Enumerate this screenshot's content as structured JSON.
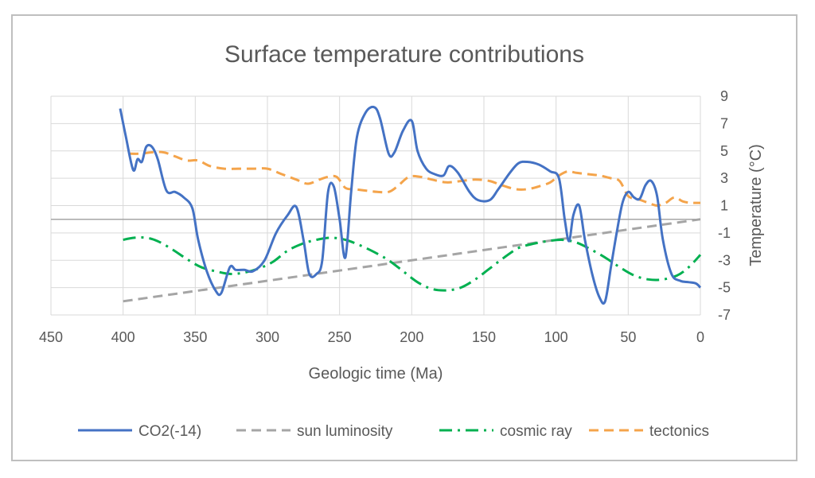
{
  "chart_data": {
    "type": "line",
    "title": "Surface temperature contributions",
    "xlabel": "Geologic time (Ma)",
    "ylabel": "Temperature (°C)",
    "x_reversed": true,
    "xlim": [
      0,
      450
    ],
    "ylim": [
      -7,
      9
    ],
    "x_ticks": [
      450,
      400,
      350,
      300,
      250,
      200,
      150,
      100,
      50,
      0
    ],
    "y_ticks": [
      9,
      7,
      5,
      3,
      1,
      -1,
      -3,
      -5,
      -7
    ],
    "y_axis_position": "right",
    "grid": true,
    "legend_position": "bottom",
    "series": [
      {
        "name": "CO2(-14)",
        "color": "#4472c4",
        "style": "solid",
        "points": [
          [
            402,
            8.1
          ],
          [
            398,
            6.0
          ],
          [
            393,
            3.6
          ],
          [
            390,
            4.4
          ],
          [
            387,
            4.2
          ],
          [
            384,
            5.3
          ],
          [
            380,
            5.3
          ],
          [
            376,
            4.4
          ],
          [
            370,
            2.1
          ],
          [
            364,
            2.0
          ],
          [
            358,
            1.6
          ],
          [
            352,
            0.8
          ],
          [
            348,
            -1.5
          ],
          [
            342,
            -3.8
          ],
          [
            336,
            -5.2
          ],
          [
            332,
            -5.4
          ],
          [
            326,
            -3.5
          ],
          [
            322,
            -3.7
          ],
          [
            316,
            -3.7
          ],
          [
            310,
            -3.8
          ],
          [
            302,
            -3.0
          ],
          [
            294,
            -1.0
          ],
          [
            286,
            0.3
          ],
          [
            280,
            0.9
          ],
          [
            275,
            -1.5
          ],
          [
            271,
            -4.0
          ],
          [
            266,
            -4.0
          ],
          [
            262,
            -3.0
          ],
          [
            258,
            2.0
          ],
          [
            254,
            2.4
          ],
          [
            250,
            0.0
          ],
          [
            246,
            -2.8
          ],
          [
            242,
            2.0
          ],
          [
            238,
            6.0
          ],
          [
            232,
            7.8
          ],
          [
            226,
            8.2
          ],
          [
            222,
            7.4
          ],
          [
            216,
            4.8
          ],
          [
            212,
            4.9
          ],
          [
            206,
            6.5
          ],
          [
            200,
            7.2
          ],
          [
            196,
            5.0
          ],
          [
            190,
            3.7
          ],
          [
            184,
            3.3
          ],
          [
            178,
            3.2
          ],
          [
            174,
            3.9
          ],
          [
            168,
            3.4
          ],
          [
            160,
            2.0
          ],
          [
            154,
            1.4
          ],
          [
            146,
            1.4
          ],
          [
            140,
            2.2
          ],
          [
            132,
            3.4
          ],
          [
            126,
            4.1
          ],
          [
            120,
            4.2
          ],
          [
            112,
            4.0
          ],
          [
            104,
            3.5
          ],
          [
            98,
            3.0
          ],
          [
            94,
            0.0
          ],
          [
            91,
            -1.6
          ],
          [
            88,
            0.3
          ],
          [
            84,
            1.0
          ],
          [
            80,
            -1.5
          ],
          [
            75,
            -4.0
          ],
          [
            70,
            -5.7
          ],
          [
            66,
            -6.0
          ],
          [
            62,
            -3.5
          ],
          [
            58,
            -1.0
          ],
          [
            54,
            1.2
          ],
          [
            50,
            2.0
          ],
          [
            46,
            1.6
          ],
          [
            42,
            1.5
          ],
          [
            38,
            2.5
          ],
          [
            34,
            2.8
          ],
          [
            30,
            1.7
          ],
          [
            26,
            -1.5
          ],
          [
            20,
            -4.0
          ],
          [
            14,
            -4.5
          ],
          [
            8,
            -4.6
          ],
          [
            3,
            -4.7
          ],
          [
            0,
            -5.0
          ]
        ]
      },
      {
        "name": "sun luminosity",
        "color": "#a5a5a5",
        "style": "dashed",
        "points": [
          [
            400,
            -6.0
          ],
          [
            0,
            0.0
          ]
        ]
      },
      {
        "name": "cosmic ray",
        "color": "#00b050",
        "style": "dashdot",
        "points": [
          [
            400,
            -1.5
          ],
          [
            392,
            -1.35
          ],
          [
            384,
            -1.35
          ],
          [
            376,
            -1.6
          ],
          [
            366,
            -2.2
          ],
          [
            356,
            -2.9
          ],
          [
            346,
            -3.5
          ],
          [
            336,
            -3.8
          ],
          [
            326,
            -4.0
          ],
          [
            316,
            -3.9
          ],
          [
            306,
            -3.6
          ],
          [
            296,
            -3.1
          ],
          [
            286,
            -2.3
          ],
          [
            276,
            -1.8
          ],
          [
            266,
            -1.5
          ],
          [
            256,
            -1.35
          ],
          [
            246,
            -1.5
          ],
          [
            236,
            -1.9
          ],
          [
            226,
            -2.4
          ],
          [
            216,
            -3.0
          ],
          [
            206,
            -3.8
          ],
          [
            196,
            -4.6
          ],
          [
            186,
            -5.1
          ],
          [
            176,
            -5.2
          ],
          [
            166,
            -5.0
          ],
          [
            156,
            -4.4
          ],
          [
            146,
            -3.6
          ],
          [
            136,
            -2.8
          ],
          [
            126,
            -2.1
          ],
          [
            116,
            -1.8
          ],
          [
            106,
            -1.6
          ],
          [
            96,
            -1.5
          ],
          [
            86,
            -1.7
          ],
          [
            76,
            -2.2
          ],
          [
            66,
            -2.8
          ],
          [
            56,
            -3.5
          ],
          [
            46,
            -4.1
          ],
          [
            36,
            -4.4
          ],
          [
            26,
            -4.4
          ],
          [
            16,
            -4.1
          ],
          [
            8,
            -3.5
          ],
          [
            0,
            -2.6
          ]
        ]
      },
      {
        "name": "tectonics",
        "color": "#f4a44b",
        "style": "dashed",
        "points": [
          [
            396,
            4.8
          ],
          [
            388,
            4.8
          ],
          [
            380,
            4.9
          ],
          [
            372,
            4.9
          ],
          [
            364,
            4.6
          ],
          [
            356,
            4.3
          ],
          [
            348,
            4.3
          ],
          [
            340,
            3.9
          ],
          [
            330,
            3.7
          ],
          [
            320,
            3.7
          ],
          [
            310,
            3.7
          ],
          [
            300,
            3.7
          ],
          [
            290,
            3.3
          ],
          [
            280,
            2.9
          ],
          [
            272,
            2.6
          ],
          [
            264,
            2.9
          ],
          [
            258,
            3.1
          ],
          [
            252,
            3.1
          ],
          [
            246,
            2.3
          ],
          [
            240,
            2.2
          ],
          [
            232,
            2.1
          ],
          [
            224,
            2.0
          ],
          [
            216,
            2.0
          ],
          [
            210,
            2.4
          ],
          [
            202,
            3.1
          ],
          [
            194,
            3.1
          ],
          [
            186,
            2.9
          ],
          [
            176,
            2.7
          ],
          [
            166,
            2.8
          ],
          [
            156,
            2.9
          ],
          [
            146,
            2.8
          ],
          [
            138,
            2.5
          ],
          [
            128,
            2.2
          ],
          [
            120,
            2.2
          ],
          [
            112,
            2.4
          ],
          [
            104,
            2.7
          ],
          [
            98,
            3.2
          ],
          [
            92,
            3.5
          ],
          [
            86,
            3.4
          ],
          [
            78,
            3.3
          ],
          [
            70,
            3.2
          ],
          [
            62,
            3.0
          ],
          [
            56,
            2.8
          ],
          [
            50,
            1.7
          ],
          [
            44,
            1.5
          ],
          [
            36,
            1.2
          ],
          [
            30,
            1.0
          ],
          [
            24,
            1.2
          ],
          [
            18,
            1.6
          ],
          [
            12,
            1.3
          ],
          [
            6,
            1.2
          ],
          [
            0,
            1.2
          ]
        ]
      }
    ]
  }
}
